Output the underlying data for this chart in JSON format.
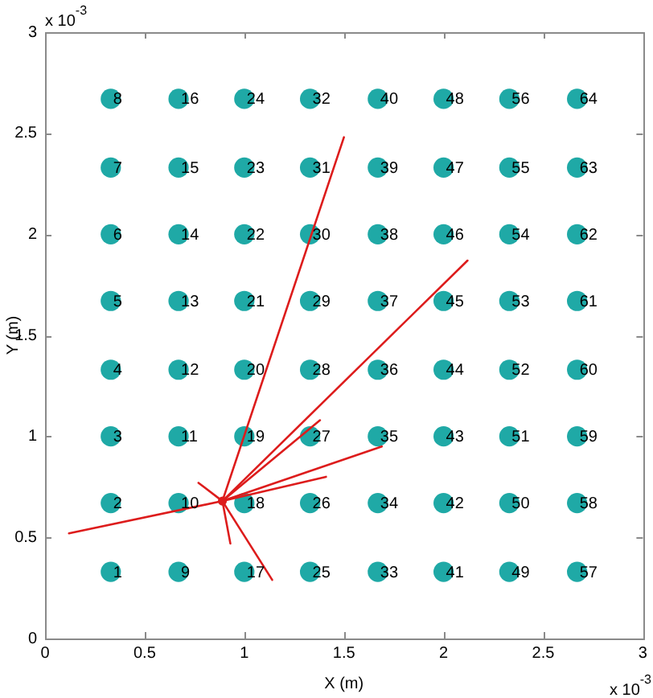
{
  "chart_data": {
    "type": "scatter",
    "xlabel": "X (m)",
    "ylabel": "Y (m)",
    "xlim": [
      0,
      3
    ],
    "ylim": [
      0,
      3
    ],
    "xticks": [
      0,
      0.5,
      1,
      1.5,
      2,
      2.5,
      3
    ],
    "yticks": [
      0,
      0.5,
      1,
      1.5,
      2,
      2.5,
      3
    ],
    "marker": "circle",
    "annotations": [
      "x 10$^{-3}$",
      "x 10$^{-3}$",
      {
        "text": "1",
        "x": 0.33,
        "y": 0.33
      },
      {
        "text": "2",
        "x": 0.33,
        "y": 0.67
      },
      {
        "text": "3",
        "x": 0.33,
        "y": 1
      },
      {
        "text": "4",
        "x": 0.33,
        "y": 1.33
      },
      {
        "text": "5",
        "x": 0.33,
        "y": 1.67
      },
      {
        "text": "6",
        "x": 0.33,
        "y": 2
      },
      {
        "text": "7",
        "x": 0.33,
        "y": 2.33
      },
      {
        "text": "8",
        "x": 0.33,
        "y": 2.67
      },
      {
        "text": "9",
        "x": 0.67,
        "y": 0.33
      },
      {
        "text": "10",
        "x": 0.67,
        "y": 0.67
      },
      {
        "text": "11",
        "x": 0.67,
        "y": 1
      },
      {
        "text": "12",
        "x": 0.67,
        "y": 1.33
      },
      {
        "text": "13",
        "x": 0.67,
        "y": 1.67
      },
      {
        "text": "14",
        "x": 0.67,
        "y": 2
      },
      {
        "text": "15",
        "x": 0.67,
        "y": 2.33
      },
      {
        "text": "16",
        "x": 0.67,
        "y": 2.67
      },
      {
        "text": "17",
        "x": 1,
        "y": 0.33
      },
      {
        "text": "18",
        "x": 1,
        "y": 0.67
      },
      {
        "text": "19",
        "x": 1,
        "y": 1
      },
      {
        "text": "20",
        "x": 1,
        "y": 1.33
      },
      {
        "text": "21",
        "x": 1,
        "y": 1.67
      },
      {
        "text": "22",
        "x": 1,
        "y": 2
      },
      {
        "text": "23",
        "x": 1,
        "y": 2.33
      },
      {
        "text": "24",
        "x": 1,
        "y": 2.67
      },
      {
        "text": "25",
        "x": 1.33,
        "y": 0.33
      },
      {
        "text": "26",
        "x": 1.33,
        "y": 0.67
      },
      {
        "text": "27",
        "x": 1.33,
        "y": 1
      },
      {
        "text": "28",
        "x": 1.33,
        "y": 1.33
      },
      {
        "text": "29",
        "x": 1.33,
        "y": 1.67
      },
      {
        "text": "30",
        "x": 1.33,
        "y": 2
      },
      {
        "text": "31",
        "x": 1.33,
        "y": 2.33
      },
      {
        "text": "32",
        "x": 1.33,
        "y": 2.67
      },
      {
        "text": "33",
        "x": 1.67,
        "y": 0.33
      },
      {
        "text": "34",
        "x": 1.67,
        "y": 0.67
      },
      {
        "text": "35",
        "x": 1.67,
        "y": 1
      },
      {
        "text": "36",
        "x": 1.67,
        "y": 1.33
      },
      {
        "text": "37",
        "x": 1.67,
        "y": 1.67
      },
      {
        "text": "38",
        "x": 1.67,
        "y": 2
      },
      {
        "text": "39",
        "x": 1.67,
        "y": 2.33
      },
      {
        "text": "40",
        "x": 1.67,
        "y": 2.67
      },
      {
        "text": "41",
        "x": 2,
        "y": 0.33
      },
      {
        "text": "42",
        "x": 2,
        "y": 0.67
      },
      {
        "text": "43",
        "x": 2,
        "y": 1
      },
      {
        "text": "44",
        "x": 2,
        "y": 1.33
      },
      {
        "text": "45",
        "x": 2,
        "y": 1.67
      },
      {
        "text": "46",
        "x": 2,
        "y": 2
      },
      {
        "text": "47",
        "x": 2,
        "y": 2.33
      },
      {
        "text": "48",
        "x": 2,
        "y": 2.67
      },
      {
        "text": "49",
        "x": 2.33,
        "y": 0.33
      },
      {
        "text": "50",
        "x": 2.33,
        "y": 0.67
      },
      {
        "text": "51",
        "x": 2.33,
        "y": 1
      },
      {
        "text": "52",
        "x": 2.33,
        "y": 1.33
      },
      {
        "text": "53",
        "x": 2.33,
        "y": 1.67
      },
      {
        "text": "54",
        "x": 2.33,
        "y": 2
      },
      {
        "text": "55",
        "x": 2.33,
        "y": 2.33
      },
      {
        "text": "56",
        "x": 2.33,
        "y": 2.67
      },
      {
        "text": "57",
        "x": 2.67,
        "y": 0.33
      },
      {
        "text": "58",
        "x": 2.67,
        "y": 0.67
      },
      {
        "text": "59",
        "x": 2.67,
        "y": 1
      },
      {
        "text": "60",
        "x": 2.67,
        "y": 1.33
      },
      {
        "text": "61",
        "x": 2.67,
        "y": 1.67
      },
      {
        "text": "62",
        "x": 2.67,
        "y": 2
      },
      {
        "text": "63",
        "x": 2.67,
        "y": 2.33
      },
      {
        "text": "64",
        "x": 2.67,
        "y": 2.67
      }
    ],
    "series": [
      {
        "color": "#1fa9a6",
        "x": [
          0.33,
          0.33,
          0.33,
          0.33,
          0.33,
          0.33,
          0.33,
          0.33,
          0.67,
          0.67,
          0.67,
          0.67,
          0.67,
          0.67,
          0.67,
          0.67,
          1,
          1,
          1,
          1,
          1,
          1,
          1,
          1,
          1.33,
          1.33,
          1.33,
          1.33,
          1.33,
          1.33,
          1.33,
          1.33,
          1.67,
          1.67,
          1.67,
          1.67,
          1.67,
          1.67,
          1.67,
          1.67,
          2,
          2,
          2,
          2,
          2,
          2,
          2,
          2,
          2.33,
          2.33,
          2.33,
          2.33,
          2.33,
          2.33,
          2.33,
          2.33,
          2.67,
          2.67,
          2.67,
          2.67,
          2.67,
          2.67,
          2.67,
          2.67
        ],
        "values": [
          0.33,
          0.67,
          1,
          1.33,
          1.67,
          2,
          2.33,
          2.67,
          0.33,
          0.67,
          1,
          1.33,
          1.67,
          2,
          2.33,
          2.67,
          0.33,
          0.67,
          1,
          1.33,
          1.67,
          2,
          2.33,
          2.67,
          0.33,
          0.67,
          1,
          1.33,
          1.67,
          2,
          2.33,
          2.67,
          0.33,
          0.67,
          1,
          1.33,
          1.67,
          2,
          2.33,
          2.67,
          0.33,
          0.67,
          1,
          1.33,
          1.67,
          2,
          2.33,
          2.67,
          0.33,
          0.67,
          1,
          1.33,
          1.67,
          2,
          2.33,
          2.67,
          0.33,
          0.67,
          1,
          1.33,
          1.67,
          2,
          2.33,
          2.67
        ]
      },
      {
        "type": "line",
        "color": "#dd1c1c",
        "marker": "none",
        "x": [
          0.89,
          0.12
        ],
        "values": [
          0.68,
          0.52
        ]
      },
      {
        "type": "line",
        "color": "#dd1c1c",
        "marker": "none",
        "x": [
          0.89,
          1.5
        ],
        "values": [
          0.68,
          2.48
        ]
      },
      {
        "type": "line",
        "color": "#dd1c1c",
        "marker": "none",
        "x": [
          0.89,
          2.12
        ],
        "values": [
          0.68,
          1.87
        ]
      },
      {
        "type": "line",
        "color": "#dd1c1c",
        "marker": "none",
        "x": [
          0.89,
          1.38
        ],
        "values": [
          0.68,
          1.08
        ]
      },
      {
        "type": "line",
        "color": "#dd1c1c",
        "marker": "none",
        "x": [
          0.89,
          1.69
        ],
        "values": [
          0.68,
          0.95
        ]
      },
      {
        "type": "line",
        "color": "#dd1c1c",
        "marker": "none",
        "x": [
          0.89,
          1.41
        ],
        "values": [
          0.68,
          0.8
        ]
      },
      {
        "type": "line",
        "color": "#dd1c1c",
        "marker": "none",
        "x": [
          0.89,
          0.77
        ],
        "values": [
          0.68,
          0.77
        ]
      },
      {
        "type": "line",
        "color": "#dd1c1c",
        "marker": "none",
        "x": [
          0.89,
          0.93
        ],
        "values": [
          0.68,
          0.47
        ]
      },
      {
        "type": "line",
        "color": "#dd1c1c",
        "marker": "none",
        "x": [
          0.89,
          1.14
        ],
        "values": [
          0.68,
          0.29
        ]
      },
      {
        "type": "line",
        "color": "#dd1c1c",
        "marker": "circle",
        "x": [
          0.89
        ],
        "values": [
          0.68
        ]
      }
    ]
  }
}
